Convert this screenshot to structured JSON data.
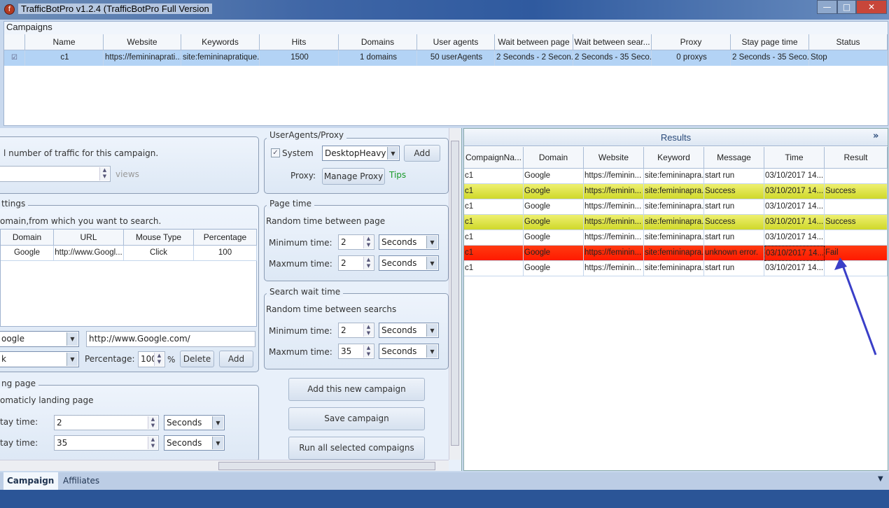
{
  "window": {
    "title": "TrafficBotPro v1.2.4 (TrafficBotPro Full Version",
    "minimize": "—",
    "maximize": "□",
    "close": "✕"
  },
  "campaigns": {
    "title": "Campaigns",
    "columns": [
      "",
      "Name",
      "Website",
      "Keywords",
      "Hits",
      "Domains",
      "User agents",
      "Wait between page",
      "Wait between sear...",
      "Proxy",
      "Stay page time",
      "Status"
    ],
    "rows": [
      {
        "checked": true,
        "cells": [
          "c1",
          "https://femininaprati...",
          "site:femininapratique....",
          "1500",
          "1 domains",
          "50 userAgents",
          "2 Seconds - 2 Secon...",
          "2 Seconds - 35 Seco...",
          "0 proxys",
          "2 Seconds - 35 Seco...",
          "Stop"
        ]
      }
    ]
  },
  "traffic": {
    "text": "l number of traffic for this campaign.",
    "value": "",
    "unit": "views"
  },
  "search_settings": {
    "legend": "ttings",
    "text": "omain,from which you want to search.",
    "columns": [
      "Domain",
      "URL",
      "Mouse Type",
      "Percentage"
    ],
    "rows": [
      [
        "Google",
        "http://www.Googl...",
        "Click",
        "100"
      ]
    ],
    "domain_select": "oogle",
    "url_value": "http://www.Google.com/",
    "mouse_select": "k",
    "percentage_label": "Percentage:",
    "percentage_value": "100",
    "percent_sign": "%",
    "delete": "Delete",
    "add": "Add"
  },
  "landing": {
    "legend": "ng page",
    "text": "omaticly landing page",
    "min_label": "tay time:",
    "min_value": "2",
    "min_unit": "Seconds",
    "max_label": "tay time:",
    "max_value": "35",
    "max_unit": "Seconds"
  },
  "useragents": {
    "legend": "UserAgents/Proxy",
    "system_label": "System",
    "system_checked": true,
    "agent_select": "DesktopHeavy",
    "add": "Add",
    "proxy_label": "Proxy:",
    "manage_proxy": "Manage Proxy",
    "tips": "Tips"
  },
  "page_time": {
    "legend": "Page time",
    "text": "Random time between page",
    "min_label": "Minimum time:",
    "min_value": "2",
    "min_unit": "Seconds",
    "max_label": "Maxmum time:",
    "max_value": "2",
    "max_unit": "Seconds"
  },
  "search_wait": {
    "legend": "Search wait time",
    "text": "Random time between searchs",
    "min_label": "Minimum time:",
    "min_value": "2",
    "min_unit": "Seconds",
    "max_label": "Maxmum time:",
    "max_value": "35",
    "max_unit": "Seconds"
  },
  "actions": {
    "add_campaign": "Add this new campaign",
    "save_campaign": "Save campaign",
    "run_all": "Run all selected compaigns"
  },
  "results": {
    "title": "Results",
    "expand": "»",
    "columns": [
      "CompaignNa...",
      "Domain",
      "Website",
      "Keyword",
      "Message",
      "Time",
      "Result"
    ],
    "rows": [
      {
        "status": "normal",
        "cells": [
          "c1",
          "Google",
          "https://feminin...",
          "site:femininapra...",
          "start run",
          "03/10/2017 14...",
          ""
        ]
      },
      {
        "status": "success",
        "cells": [
          "c1",
          "Google",
          "https://feminin...",
          "site:femininapra...",
          "Success",
          "03/10/2017 14...",
          "Success"
        ]
      },
      {
        "status": "normal",
        "cells": [
          "c1",
          "Google",
          "https://feminin...",
          "site:femininapra...",
          "start run",
          "03/10/2017 14...",
          ""
        ]
      },
      {
        "status": "success",
        "cells": [
          "c1",
          "Google",
          "https://feminin...",
          "site:femininapra...",
          "Success",
          "03/10/2017 14...",
          "Success"
        ]
      },
      {
        "status": "normal",
        "cells": [
          "c1",
          "Google",
          "https://feminin...",
          "site:femininapra...",
          "start run",
          "03/10/2017 14...",
          ""
        ]
      },
      {
        "status": "fail",
        "cells": [
          "c1",
          "Google",
          "https://feminin...",
          "site:femininapra...",
          "unknown error.",
          "03/10/2017 14...",
          "Fail"
        ]
      },
      {
        "status": "normal",
        "cells": [
          "c1",
          "Google",
          "https://feminin...",
          "site:femininapra...",
          "start run",
          "03/10/2017 14...",
          ""
        ]
      }
    ]
  },
  "tabs": [
    {
      "label": "Campaign",
      "active": true
    },
    {
      "label": "Affiliates",
      "active": false
    }
  ],
  "colors": {
    "success": "#d8e030",
    "fail": "#ff2a00",
    "selected": "#b3d3f5",
    "annotation_arrow": "#3a3fc8",
    "tips": "#1a9a2a"
  }
}
